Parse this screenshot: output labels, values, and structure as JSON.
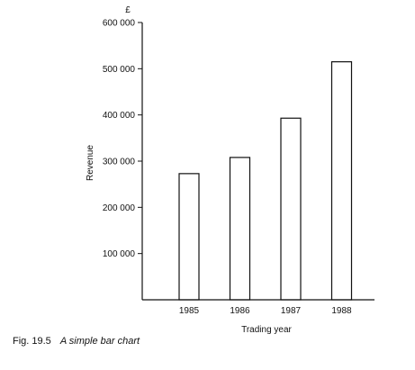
{
  "chart_data": {
    "type": "bar",
    "title": "",
    "xlabel": "Trading year",
    "ylabel": "Revenue",
    "yunit": "£",
    "categories": [
      "1985",
      "1986",
      "1987",
      "1988"
    ],
    "values": [
      273000,
      308000,
      393000,
      515000
    ],
    "ylim": [
      0,
      600000
    ],
    "yticks": [
      100000,
      200000,
      300000,
      400000,
      500000,
      600000
    ],
    "ytick_labels": [
      "100 000",
      "200 000",
      "300 000",
      "400 000",
      "500 000",
      "600 000"
    ],
    "grid": false,
    "legend": "none",
    "colors": {
      "bar_fill": "#ffffff",
      "bar_stroke": "#111111",
      "axis": "#111111"
    }
  },
  "caption": {
    "figure_number": "Fig. 19.5",
    "title": "A simple bar chart"
  }
}
